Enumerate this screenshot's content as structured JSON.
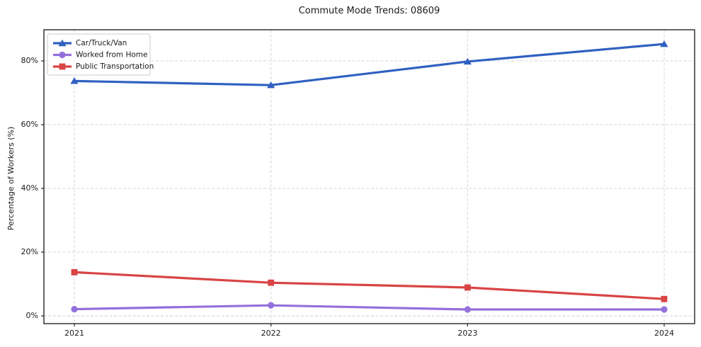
{
  "chart_data": {
    "type": "line",
    "title": "Commute Mode Trends: 08609",
    "xlabel": "",
    "ylabel": "Percentage of Workers (%)",
    "categories": [
      "2021",
      "2022",
      "2023",
      "2024"
    ],
    "series": [
      {
        "name": "Car/Truck/Van",
        "marker": "triangle",
        "color": "#3060c1",
        "values": [
          73.7,
          72.4,
          79.8,
          85.3
        ]
      },
      {
        "name": "Worked from Home",
        "marker": "circle",
        "color": "#9370db",
        "values": [
          2.1,
          3.3,
          2.0,
          2.0
        ]
      },
      {
        "name": "Public Transportation",
        "marker": "square",
        "color": "#d94444",
        "values": [
          13.7,
          10.4,
          8.9,
          5.3
        ]
      }
    ],
    "y_ticks": [
      0,
      20,
      40,
      60,
      80
    ],
    "y_tick_suffix": "%",
    "ylim": [
      -2.44,
      89.78
    ],
    "grid": true,
    "legend_position": "upper left"
  },
  "colors": {
    "background": "#ffffff",
    "grid": "#d6d6d6",
    "zero_grid": "#c8cce0",
    "spine": "#262626",
    "tick": "#262626",
    "text": "#1a1a1a",
    "legend_border": "#cccccc",
    "legend_background": "#ffffff"
  }
}
